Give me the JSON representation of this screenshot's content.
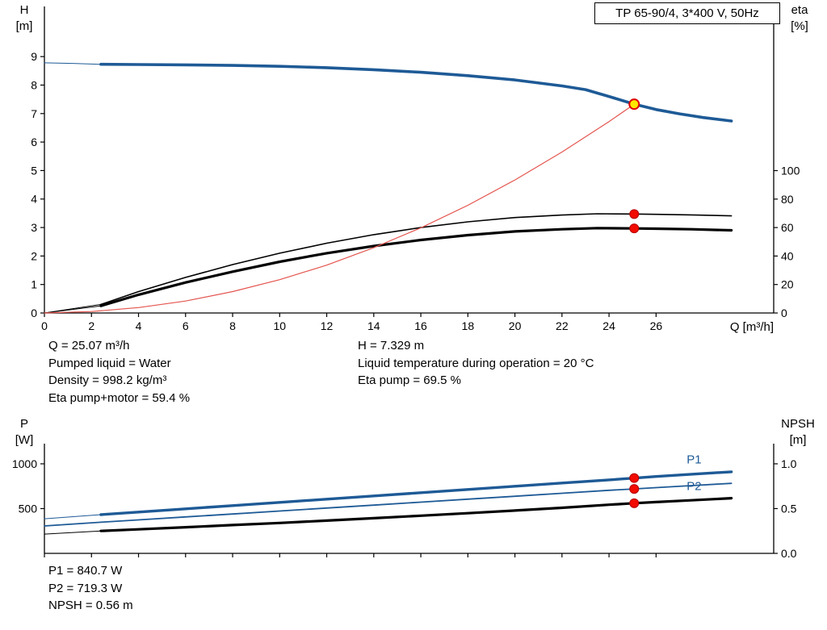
{
  "title_box": {
    "text": "TP 65-90/4, 3*400 V, 50Hz"
  },
  "axis_labels": {
    "hq_left_line1": "H",
    "hq_left_line2": "[m]",
    "hq_right_line1": "eta",
    "hq_right_line2": "[%]",
    "hq_x": "Q [m³/h]",
    "pn_left_line1": "P",
    "pn_left_line2": "[W]",
    "pn_right_line1": "NPSH",
    "pn_right_line2": "[m]"
  },
  "operating_point_info": {
    "left_lines": [
      "Q = 25.07 m³/h",
      "Pumped liquid = Water",
      "Density = 998.2 kg/m³",
      "Eta pump+motor = 59.4 %"
    ],
    "right_lines": [
      "H = 7.329 m",
      "Liquid temperature during operation = 20 °C",
      "Eta pump = 69.5 %"
    ]
  },
  "result_info": {
    "lines": [
      "P1 = 840.7 W",
      "P2 = 719.3 W",
      "NPSH = 0.56 m"
    ]
  },
  "colors": {
    "curve_blue": "#1e5a96",
    "curve_black": "#000000",
    "system_red": "#e4554f",
    "point_red": "#f10b00",
    "point_red_edge": "#b30000",
    "duty_yellow": "#ffe600",
    "duty_ring_red": "#e00000"
  },
  "duty_point": {
    "q_m3h": 25.07,
    "h_m": 7.329,
    "eta_pump_pct": 69.5,
    "eta_pump_motor_pct": 59.4,
    "p1_w": 840.7,
    "p2_w": 719.3,
    "npsh_m": 0.56
  },
  "chart_data": [
    {
      "type": "line",
      "title": "TP 65-90/4, 3*400 V, 50Hz",
      "xlabel": "Q [m³/h]",
      "ylabel_left": "H [m]",
      "ylabel_right": "eta [%]",
      "grid": false,
      "x_axis": {
        "min": 0,
        "max": 31,
        "ticks": [
          0,
          2,
          4,
          6,
          8,
          10,
          12,
          14,
          16,
          18,
          20,
          22,
          24,
          26
        ],
        "tick_labels": [
          "0",
          "2",
          "4",
          "6",
          "8",
          "10",
          "12",
          "14",
          "16",
          "18",
          "20",
          "22",
          "24",
          "26"
        ]
      },
      "y_left": {
        "min": 0,
        "max": 10.76,
        "ticks": [
          0,
          1,
          2,
          3,
          4,
          5,
          6,
          7,
          8,
          9
        ],
        "tick_labels": [
          "0",
          "1",
          "2",
          "3",
          "4",
          "5",
          "6",
          "7",
          "8",
          "9"
        ]
      },
      "y_right": {
        "min": 0,
        "max": 215.3,
        "ticks": [
          0,
          20,
          40,
          60,
          80,
          100
        ],
        "tick_labels": [
          "0",
          "20",
          "40",
          "60",
          "80",
          "100"
        ]
      },
      "series": [
        {
          "name": "head-curve-lead",
          "axis": "left",
          "color": "#1e5a96",
          "width": 1,
          "points": [
            [
              0,
              8.78
            ],
            [
              1.2,
              8.76
            ],
            [
              2.4,
              8.73
            ]
          ]
        },
        {
          "name": "head-curve",
          "axis": "left",
          "color": "#1e5a96",
          "width": 3.6,
          "points": [
            [
              2.4,
              8.73
            ],
            [
              4,
              8.72
            ],
            [
              6,
              8.71
            ],
            [
              8,
              8.69
            ],
            [
              10,
              8.66
            ],
            [
              12,
              8.61
            ],
            [
              14,
              8.54
            ],
            [
              16,
              8.45
            ],
            [
              18,
              8.33
            ],
            [
              20,
              8.18
            ],
            [
              22,
              7.97
            ],
            [
              23,
              7.84
            ],
            [
              24,
              7.6
            ],
            [
              25.07,
              7.33
            ],
            [
              26,
              7.14
            ],
            [
              27,
              6.99
            ],
            [
              28,
              6.86
            ],
            [
              29.2,
              6.74
            ]
          ]
        },
        {
          "name": "eta-pump-lead",
          "axis": "right",
          "color": "#000000",
          "width": 1,
          "points": [
            [
              0,
              0
            ],
            [
              2.4,
              6
            ]
          ]
        },
        {
          "name": "eta-pump-curve",
          "axis": "right",
          "color": "#000000",
          "width": 1.6,
          "points": [
            [
              2.4,
              6
            ],
            [
              4,
              15
            ],
            [
              6,
              25
            ],
            [
              8,
              34
            ],
            [
              10,
              42
            ],
            [
              12,
              49
            ],
            [
              14,
              55
            ],
            [
              16,
              60
            ],
            [
              18,
              64
            ],
            [
              20,
              67
            ],
            [
              22,
              68.8
            ],
            [
              23.5,
              69.7
            ],
            [
              25.07,
              69.5
            ],
            [
              26,
              69.3
            ],
            [
              27.5,
              68.9
            ],
            [
              29.2,
              68.2
            ]
          ]
        },
        {
          "name": "eta-pump-motor-lead",
          "axis": "right",
          "color": "#000000",
          "width": 1,
          "points": [
            [
              0,
              0
            ],
            [
              2.4,
              5
            ]
          ]
        },
        {
          "name": "eta-pump-motor-curve",
          "axis": "right",
          "color": "#000000",
          "width": 3.2,
          "points": [
            [
              2.4,
              5
            ],
            [
              4,
              12.8
            ],
            [
              6,
              21.4
            ],
            [
              8,
              29
            ],
            [
              10,
              36
            ],
            [
              12,
              42
            ],
            [
              14,
              47
            ],
            [
              16,
              51.3
            ],
            [
              18,
              54.7
            ],
            [
              20,
              57.3
            ],
            [
              22,
              58.8
            ],
            [
              23.5,
              59.6
            ],
            [
              25.07,
              59.4
            ],
            [
              26,
              59.2
            ],
            [
              27.5,
              58.8
            ],
            [
              29.2,
              58.1
            ]
          ]
        },
        {
          "name": "system-curve",
          "axis": "left",
          "color": "#e4554f",
          "width": 1.2,
          "points": [
            [
              0,
              0
            ],
            [
              2,
              0.05
            ],
            [
              4,
              0.19
            ],
            [
              6,
              0.42
            ],
            [
              8,
              0.75
            ],
            [
              10,
              1.17
            ],
            [
              12,
              1.68
            ],
            [
              14,
              2.29
            ],
            [
              16,
              2.99
            ],
            [
              18,
              3.78
            ],
            [
              20,
              4.67
            ],
            [
              22,
              5.65
            ],
            [
              24,
              6.72
            ],
            [
              25.07,
              7.329
            ]
          ]
        }
      ],
      "labels": [],
      "markers": [
        {
          "name": "eta-pump-point",
          "x": 25.07,
          "y": 69.5,
          "axis": "right",
          "r": 5.5,
          "fill": "#f10b00",
          "stroke": "#b30000",
          "sw": 1,
          "interactable": "false"
        },
        {
          "name": "eta-pump-motor-point",
          "x": 25.07,
          "y": 59.4,
          "axis": "right",
          "r": 5.5,
          "fill": "#f10b00",
          "stroke": "#b30000",
          "sw": 1,
          "interactable": "false"
        },
        {
          "name": "duty-point",
          "x": 25.07,
          "y": 7.329,
          "axis": "left",
          "r": 6,
          "fill": "#ffe600",
          "stroke": "#e00000",
          "sw": 2,
          "interactable": "true"
        }
      ]
    },
    {
      "type": "line",
      "title": "Power and NPSH vs flow",
      "xlabel": "",
      "ylabel_left": "P [W]",
      "ylabel_right": "NPSH [m]",
      "grid": false,
      "x_axis": {
        "min": 0,
        "max": 31,
        "ticks": [
          0,
          2,
          4,
          6,
          8,
          10,
          12,
          14,
          16,
          18,
          20,
          22,
          24,
          26
        ],
        "tick_labels": [
          "",
          "",
          "",
          "",
          "",
          "",
          "",
          "",
          "",
          "",
          "",
          "",
          "",
          ""
        ]
      },
      "y_left": {
        "min": 0,
        "max": 1225,
        "ticks": [
          500,
          1000
        ],
        "tick_labels": [
          "500",
          "1000"
        ]
      },
      "y_right": {
        "min": 0,
        "max": 1.225,
        "ticks": [
          0,
          0.5,
          1.0
        ],
        "tick_labels": [
          "0.0",
          "0.5",
          "1.0"
        ]
      },
      "series": [
        {
          "name": "p1-curve-lead",
          "axis": "left",
          "color": "#1e5a96",
          "width": 1,
          "points": [
            [
              0,
              386
            ],
            [
              2.4,
              432
            ]
          ]
        },
        {
          "name": "p1-curve",
          "axis": "left",
          "color": "#1e5a96",
          "width": 3.4,
          "points": [
            [
              2.4,
              432
            ],
            [
              4,
              461
            ],
            [
              6,
              497
            ],
            [
              8,
              533
            ],
            [
              10,
              569
            ],
            [
              12,
              605
            ],
            [
              14,
              641
            ],
            [
              16,
              677
            ],
            [
              18,
              713
            ],
            [
              20,
              749
            ],
            [
              22,
              785
            ],
            [
              24,
              821
            ],
            [
              25.07,
              840.7
            ],
            [
              26,
              858
            ],
            [
              27.5,
              884
            ],
            [
              29.2,
              911
            ]
          ]
        },
        {
          "name": "p2-curve",
          "axis": "left",
          "color": "#1e5a96",
          "width": 1.8,
          "points": [
            [
              0,
              306
            ],
            [
              2.4,
              348
            ],
            [
              4,
              374
            ],
            [
              6,
              407
            ],
            [
              8,
              440
            ],
            [
              10,
              473
            ],
            [
              12,
              506
            ],
            [
              14,
              539
            ],
            [
              16,
              572
            ],
            [
              18,
              605
            ],
            [
              20,
              638
            ],
            [
              22,
              671
            ],
            [
              24,
              704
            ],
            [
              25.07,
              719.3
            ],
            [
              26,
              734
            ],
            [
              27.5,
              757
            ],
            [
              29.2,
              782
            ]
          ]
        },
        {
          "name": "npsh-curve-lead",
          "axis": "right",
          "color": "#000000",
          "width": 1,
          "points": [
            [
              0,
              0.215
            ],
            [
              2.4,
              0.25
            ]
          ]
        },
        {
          "name": "npsh-curve",
          "axis": "right",
          "color": "#000000",
          "width": 3.2,
          "points": [
            [
              2.4,
              0.25
            ],
            [
              4,
              0.268
            ],
            [
              6,
              0.292
            ],
            [
              8,
              0.316
            ],
            [
              10,
              0.34
            ],
            [
              12,
              0.366
            ],
            [
              14,
              0.393
            ],
            [
              16,
              0.421
            ],
            [
              18,
              0.449
            ],
            [
              20,
              0.478
            ],
            [
              22,
              0.509
            ],
            [
              24,
              0.543
            ],
            [
              25.07,
              0.56
            ],
            [
              26,
              0.573
            ],
            [
              27.5,
              0.593
            ],
            [
              29.2,
              0.616
            ]
          ]
        }
      ],
      "labels": [
        {
          "name": "p1-curve-label",
          "text": "P1",
          "x": 27.3,
          "y": 1005,
          "axis": "left",
          "color": "#1e5a96"
        },
        {
          "name": "p2-curve-label",
          "text": "P2",
          "x": 27.3,
          "y": 705,
          "axis": "left",
          "color": "#1e5a96"
        }
      ],
      "markers": [
        {
          "name": "p1-point",
          "x": 25.07,
          "y": 840.7,
          "axis": "left",
          "r": 5.5,
          "fill": "#f10b00",
          "stroke": "#b30000",
          "sw": 1,
          "interactable": "false"
        },
        {
          "name": "p2-point",
          "x": 25.07,
          "y": 719.3,
          "axis": "left",
          "r": 5.5,
          "fill": "#f10b00",
          "stroke": "#b30000",
          "sw": 1,
          "interactable": "false"
        },
        {
          "name": "npsh-point",
          "x": 25.07,
          "y": 0.56,
          "axis": "right",
          "r": 5.5,
          "fill": "#f10b00",
          "stroke": "#b30000",
          "sw": 1,
          "interactable": "false"
        }
      ]
    }
  ]
}
